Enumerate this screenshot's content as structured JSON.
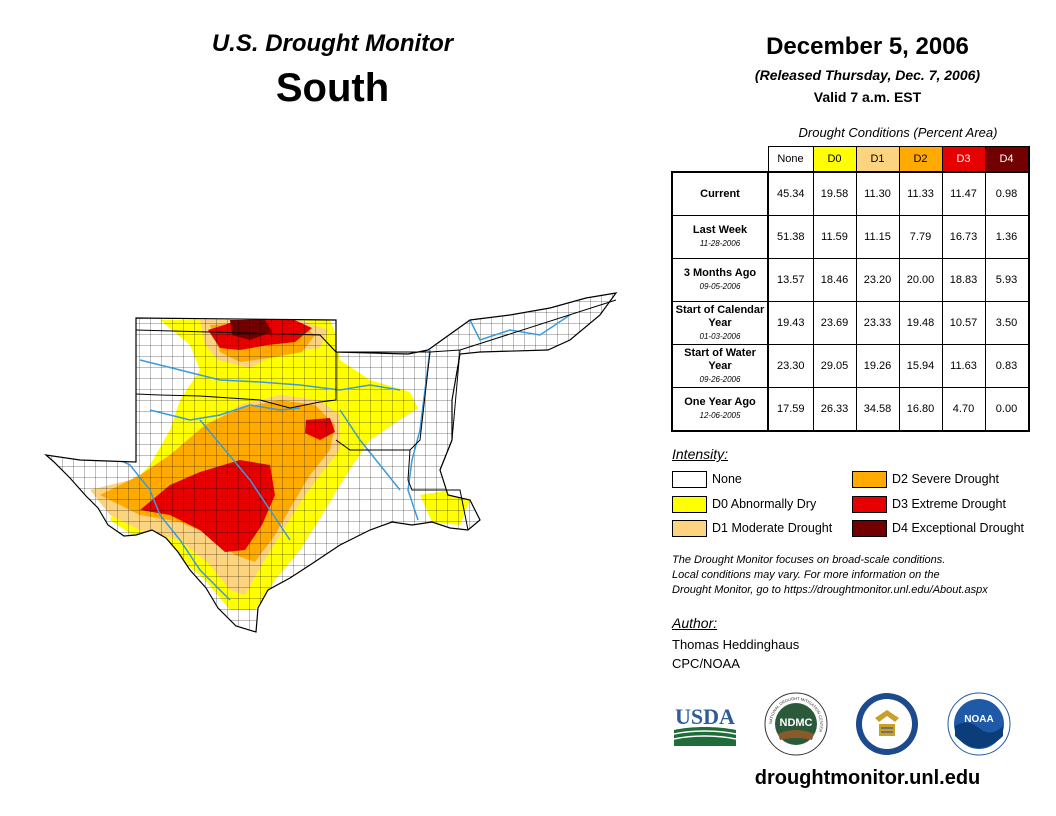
{
  "header": {
    "title": "U.S. Drought Monitor",
    "region": "South",
    "date": "December 5, 2006",
    "released": "(Released Thursday, Dec. 7, 2006)",
    "valid": "Valid 7 a.m. EST"
  },
  "table": {
    "caption": "Drought Conditions (Percent Area)",
    "columns": [
      "None",
      "D0",
      "D1",
      "D2",
      "D3",
      "D4"
    ],
    "rows": [
      {
        "label": "Current",
        "date": "",
        "values": [
          "45.34",
          "19.58",
          "11.30",
          "11.33",
          "11.47",
          "0.98"
        ]
      },
      {
        "label": "Last Week",
        "date": "11-28-2006",
        "values": [
          "51.38",
          "11.59",
          "11.15",
          "7.79",
          "16.73",
          "1.36"
        ]
      },
      {
        "label": "3 Months Ago",
        "date": "09-05-2006",
        "values": [
          "13.57",
          "18.46",
          "23.20",
          "20.00",
          "18.83",
          "5.93"
        ]
      },
      {
        "label": "Start of Calendar Year",
        "date": "01-03-2006",
        "values": [
          "19.43",
          "23.69",
          "23.33",
          "19.48",
          "10.57",
          "3.50"
        ]
      },
      {
        "label": "Start of Water Year",
        "date": "09-26-2006",
        "values": [
          "23.30",
          "29.05",
          "19.26",
          "15.94",
          "11.63",
          "0.83"
        ]
      },
      {
        "label": "One Year Ago",
        "date": "12-06-2005",
        "values": [
          "17.59",
          "26.33",
          "34.58",
          "16.80",
          "4.70",
          "0.00"
        ]
      }
    ]
  },
  "legend": {
    "title": "Intensity:",
    "items": [
      {
        "label": "None",
        "color": "#ffffff"
      },
      {
        "label": "D0 Abnormally Dry",
        "color": "#ffff00"
      },
      {
        "label": "D1 Moderate Drought",
        "color": "#fcd37f"
      },
      {
        "label": "D2 Severe Drought",
        "color": "#ffaa00"
      },
      {
        "label": "D3 Extreme Drought",
        "color": "#e60000"
      },
      {
        "label": "D4 Exceptional Drought",
        "color": "#730000"
      }
    ]
  },
  "note": {
    "line1": "The Drought Monitor focuses on broad-scale conditions.",
    "line2": "Local conditions may vary. For more information on the",
    "line3": "Drought Monitor, go to https://droughtmonitor.unl.edu/About.aspx"
  },
  "author": {
    "title": "Author:",
    "name": "Thomas Heddinghaus",
    "org": "CPC/NOAA"
  },
  "logos": {
    "usda": "USDA",
    "ndmc": "NDMC",
    "noaa": "NOAA",
    "ndmc_ring": "NATIONAL DROUGHT MITIGATION CENTER"
  },
  "url": "droughtmonitor.unl.edu"
}
